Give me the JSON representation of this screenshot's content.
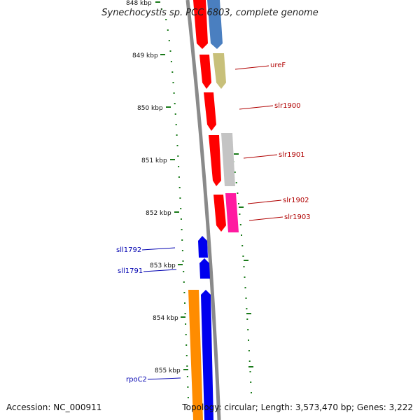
{
  "title": "Synechocystis sp. PCC 6803, complete genome",
  "footer": {
    "accession": "Accession: NC_000911",
    "stats": "Topology: circular; Length: 3,573,470 bp; Genes: 3,222"
  },
  "ticks": [
    "848 kbp",
    "849 kbp",
    "850 kbp",
    "851 kbp",
    "852 kbp",
    "853 kbp",
    "854 kbp",
    "855 kbp"
  ],
  "labels": {
    "ureF": "ureF",
    "slr1900": "slr1900",
    "slr1901": "slr1901",
    "slr1902": "slr1902",
    "slr1903": "slr1903",
    "sll1792": "sll1792",
    "sll1791": "sll1791",
    "rpoC2": "rpoC2"
  },
  "colors": {
    "backbone": "#8a8a8a",
    "tick": "#1a7a1a",
    "fwd_label": "#b00000",
    "rev_label": "#0000b0",
    "red": "#ff0000",
    "steelblue": "#4a7fc0",
    "khaki": "#c8c07a",
    "gray": "#c4c4c4",
    "pink": "#ff1aa0",
    "blue": "#0000ee",
    "orange": "#ff8c00"
  }
}
